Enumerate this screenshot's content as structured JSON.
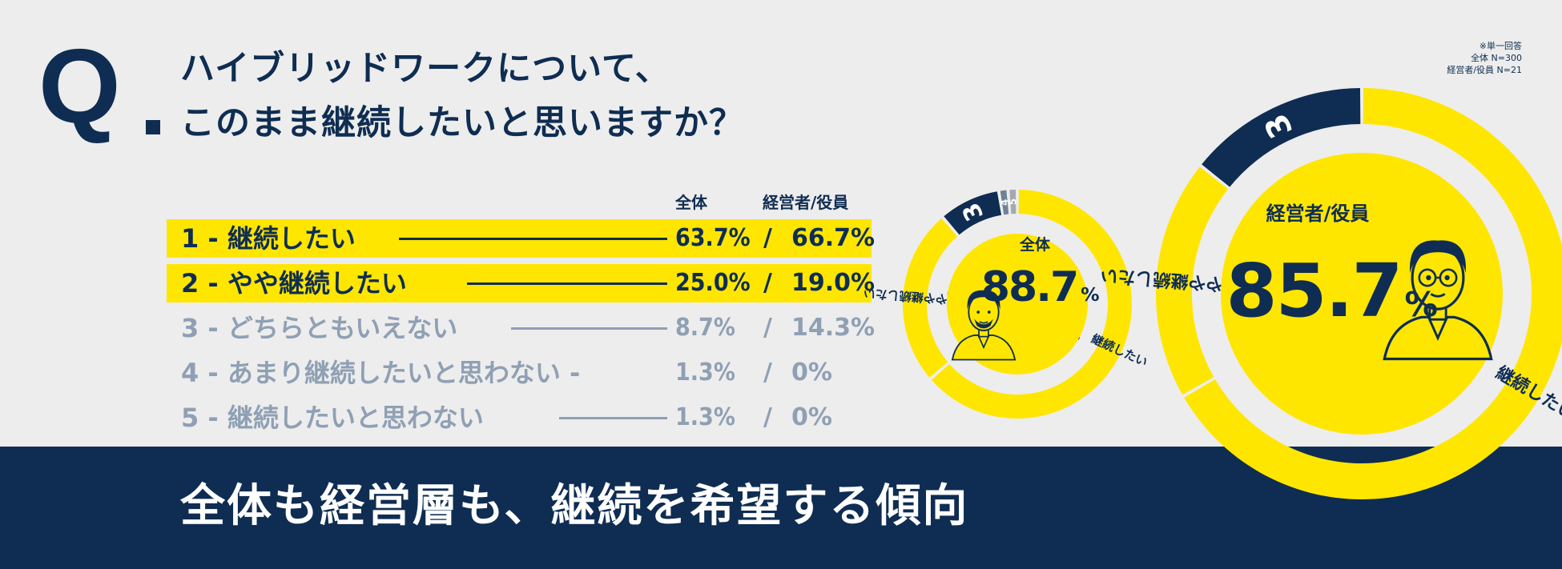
{
  "question": {
    "mark": "Q",
    "line1": "ハイブリッドワークについて、",
    "line2": "このまま継続したいと思いますか？"
  },
  "note": {
    "line1": "※単一回答",
    "line2": "全体 N=300",
    "line3": "経営者/役員 N=21"
  },
  "columns": {
    "all": "全体",
    "exec": "経営者/役員"
  },
  "rows": [
    {
      "label": "1 - 継続したい",
      "all": "63.7%",
      "sep": "/",
      "exec": "66.7%"
    },
    {
      "label": "2 - やや継続したい",
      "all": "25.0%",
      "sep": "/",
      "exec": "19.0%"
    },
    {
      "label": "3 - どちらともいえない",
      "all": "8.7%",
      "sep": "/",
      "exec": "14.3%"
    },
    {
      "label": "4 - あまり継続したいと思わない -",
      "all": "1.3%",
      "sep": "/",
      "exec": "0%"
    },
    {
      "label": "5 - 継続したいと思わない",
      "all": "1.3%",
      "sep": "/",
      "exec": "0%"
    }
  ],
  "footer": "全体も経営層も、継続を希望する傾向",
  "colors": {
    "navy": "#0f2d52",
    "yellow": "#ffe600",
    "grey": "#8fa0b4",
    "bg": "#ededed"
  },
  "chart_data": [
    {
      "type": "pie",
      "title": "全体",
      "center_value": "88.7",
      "center_unit": "%",
      "categories": [
        "1",
        "2",
        "3",
        "4",
        "5"
      ],
      "category_labels": [
        "継続したい",
        "やや継続したい",
        "",
        "",
        ""
      ],
      "values": [
        63.7,
        25.0,
        8.7,
        1.3,
        1.3
      ],
      "colors": [
        "#ffe600",
        "#ffe600",
        "#0f2d52",
        "#6f8197",
        "#a5a9ae"
      ]
    },
    {
      "type": "pie",
      "title": "経営者/役員",
      "center_value": "85.7",
      "center_unit": "%",
      "categories": [
        "1",
        "2",
        "3"
      ],
      "category_labels": [
        "継続したい",
        "やや継続したい",
        ""
      ],
      "values": [
        66.7,
        19.0,
        14.3
      ],
      "colors": [
        "#ffe600",
        "#ffe600",
        "#0f2d52"
      ]
    }
  ]
}
